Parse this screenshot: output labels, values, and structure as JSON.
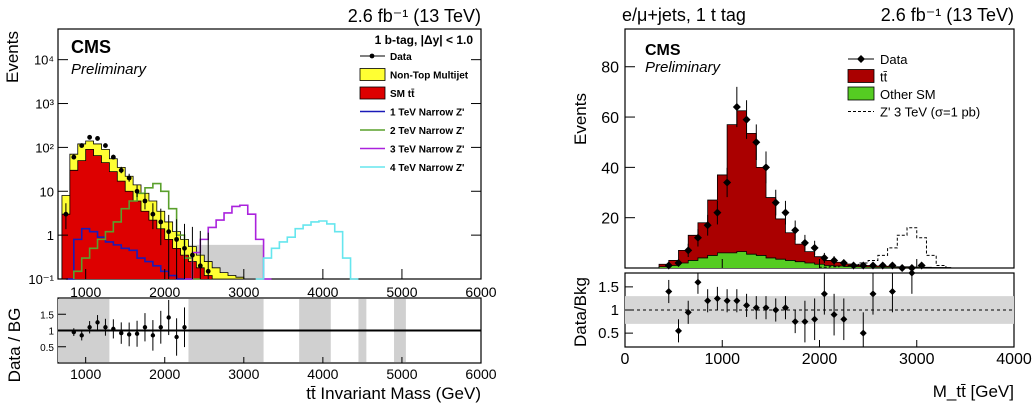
{
  "chart_data": [
    {
      "type": "histogram",
      "lumi_label": "2.6 fb⁻¹ (13 TeV)",
      "cms_label": "CMS",
      "prelim_label": "Preliminary",
      "selection_label": "1 b-tag, |Δy| < 1.0",
      "top": {
        "ylabel": "Events",
        "yscale": "log",
        "ylim": [
          0.1,
          50000
        ],
        "yticks": [
          {
            "v": 0.1,
            "label": "10⁻¹"
          },
          {
            "v": 1,
            "label": "1"
          },
          {
            "v": 10,
            "label": "10"
          },
          {
            "v": 100,
            "label": "10²"
          },
          {
            "v": 1000,
            "label": "10³"
          },
          {
            "v": 10000,
            "label": "10⁴"
          }
        ]
      },
      "ratio": {
        "ylabel": "Data / BG",
        "ylim": [
          0,
          2
        ],
        "yticks": [
          {
            "v": 0.5,
            "label": "0.5"
          },
          {
            "v": 1,
            "label": "1"
          },
          {
            "v": 1.5,
            "label": "1.5"
          }
        ]
      },
      "xlabel": "tt̄ Invariant Mass (GeV)",
      "xlim": [
        650,
        6000
      ],
      "xticks": [
        1000,
        2000,
        3000,
        4000,
        5000,
        6000
      ],
      "bin_edges": [
        700,
        800,
        900,
        1000,
        1100,
        1200,
        1300,
        1400,
        1500,
        1600,
        1700,
        1800,
        1900,
        2000,
        2100,
        2200,
        2300,
        2400,
        2500,
        2600,
        2700,
        2800,
        2900,
        3000,
        3100,
        3200
      ],
      "legend": [
        {
          "label": "Data",
          "style": "marker",
          "color": "#000000"
        },
        {
          "label": "Non-Top Multijet",
          "style": "fill",
          "color": "#ffff33"
        },
        {
          "label": "SM tt̄",
          "style": "fill",
          "color": "#dd0000"
        },
        {
          "label": "1 TeV Narrow Z'",
          "style": "line",
          "color": "#1a1ab8"
        },
        {
          "label": "2 TeV Narrow Z'",
          "style": "line",
          "color": "#5aa02c"
        },
        {
          "label": "3 TeV Narrow Z'",
          "style": "line",
          "color": "#aa22dd"
        },
        {
          "label": "4 TeV Narrow Z'",
          "style": "line",
          "color": "#66e6ee"
        }
      ],
      "series": {
        "sm_ttbar": [
          3,
          30,
          50,
          90,
          65,
          45,
          28,
          17,
          10,
          6,
          3.5,
          2.2,
          1.4,
          0.8,
          0.5,
          0.35,
          0.25,
          0.18,
          0.12,
          0.1,
          0,
          0,
          0,
          0,
          0
        ],
        "total_bg": [
          8,
          70,
          120,
          140,
          120,
          90,
          55,
          35,
          22,
          14,
          9,
          6,
          3.5,
          2,
          1.2,
          0.8,
          0.55,
          0.35,
          0.25,
          0.18,
          0.14,
          0.12,
          0.11,
          0,
          0
        ],
        "data": {
          "x": [
            750,
            850,
            950,
            1050,
            1150,
            1250,
            1350,
            1450,
            1550,
            1650,
            1750,
            1850,
            1950,
            2050,
            2150,
            2250,
            2350,
            2450,
            2550
          ],
          "y": [
            3,
            60,
            110,
            170,
            160,
            110,
            60,
            30,
            20,
            10,
            6,
            3,
            2,
            1.2,
            0.8,
            0.5,
            0.35,
            0.2,
            0.15
          ]
        },
        "zp1": {
          "x": [
            800,
            900,
            1000,
            1100,
            1200,
            1300,
            1400,
            1500,
            1600,
            1700,
            1800,
            1900,
            2000,
            2100,
            2200,
            2300
          ],
          "y": [
            0.1,
            0.8,
            1.4,
            1.2,
            0.9,
            0.7,
            0.6,
            0.5,
            0.45,
            0.3,
            0.25,
            0.2,
            0.15,
            0.12,
            0.1,
            0.1
          ]
        },
        "zp2": {
          "x": [
            900,
            1000,
            1100,
            1200,
            1300,
            1400,
            1500,
            1600,
            1700,
            1800,
            1900,
            2000,
            2100,
            2200,
            2300,
            2400
          ],
          "y": [
            0.15,
            0.3,
            0.5,
            0.8,
            1.2,
            2,
            4,
            6,
            9,
            12,
            15,
            10,
            4,
            1,
            0.3,
            0.1
          ]
        },
        "zp3": {
          "x": [
            2300,
            2400,
            2500,
            2600,
            2700,
            2800,
            2900,
            3000,
            3100,
            3200,
            3300
          ],
          "y": [
            0.1,
            0.4,
            0.8,
            1.5,
            2.2,
            3.2,
            4.5,
            4.8,
            3,
            0.8,
            0.1
          ]
        },
        "zp4": {
          "x": [
            3200,
            3300,
            3400,
            3500,
            3600,
            3700,
            3800,
            3900,
            4000,
            4100,
            4200,
            4300,
            4400
          ],
          "y": [
            0.1,
            0.3,
            0.5,
            0.7,
            0.9,
            1.4,
            1.7,
            2,
            2.1,
            1.8,
            1.2,
            0.3,
            0.1
          ]
        }
      },
      "ratio_points": {
        "x": [
          850,
          950,
          1050,
          1150,
          1250,
          1350,
          1450,
          1550,
          1650,
          1750,
          1850,
          1950,
          2050,
          2150,
          2250
        ],
        "y": [
          0.95,
          0.85,
          1.1,
          1.25,
          1.1,
          1.05,
          0.92,
          0.88,
          0.9,
          1.1,
          0.85,
          1.1,
          1.4,
          0.8,
          1.1
        ]
      }
    },
    {
      "type": "histogram",
      "channel_label": "e/μ+jets, 1 t tag",
      "lumi_label": "2.6 fb⁻¹ (13 TeV)",
      "cms_label": "CMS",
      "prelim_label": "Preliminary",
      "top": {
        "ylabel": "Events",
        "ylim": [
          0,
          95
        ],
        "yticks": [
          20,
          40,
          60,
          80
        ]
      },
      "ratio": {
        "ylabel": "Data/Bkg",
        "ylim": [
          0.2,
          1.8
        ],
        "yticks": [
          0.5,
          1,
          1.5
        ]
      },
      "xlabel": "M_tt̄ [GeV]",
      "xlim": [
        0,
        4000
      ],
      "xticks": [
        0,
        1000,
        2000,
        3000,
        4000
      ],
      "legend": [
        {
          "label": "Data",
          "style": "marker",
          "color": "#000000"
        },
        {
          "label": "tt̄",
          "style": "fill",
          "color": "#aa0000"
        },
        {
          "label": "Other SM",
          "style": "fill",
          "color": "#55cc22"
        },
        {
          "label": "Z' 3 TeV (σ=1 pb)",
          "style": "dashed",
          "color": "#000000"
        }
      ],
      "bin_edges": [
        350,
        450,
        550,
        650,
        750,
        850,
        950,
        1050,
        1150,
        1250,
        1350,
        1450,
        1550,
        1650,
        1750,
        1850,
        1950,
        2050,
        2150,
        2250,
        2350,
        2450,
        2550,
        2650,
        2750,
        2850,
        2950,
        3050,
        3150,
        3250,
        3350,
        3450,
        3550,
        3650,
        3750,
        3850,
        3950
      ],
      "series": {
        "ttbar": [
          1,
          2,
          5,
          10,
          14,
          22,
          31,
          51,
          56,
          48,
          35,
          24,
          16,
          11,
          7,
          4.5,
          3,
          2,
          1.5,
          1,
          0.8,
          0.6,
          0.5,
          0.4,
          0.3,
          0.3,
          0.2,
          0.2,
          0.1,
          0.1,
          0,
          0,
          0,
          0,
          0,
          0
        ],
        "other_sm": [
          0.5,
          1,
          2,
          3,
          4,
          5,
          6,
          6,
          6.5,
          5.5,
          5,
          4,
          3.5,
          3,
          2.5,
          2,
          1.5,
          1,
          0.8,
          0.6,
          0.5,
          0.4,
          0.3,
          0.3,
          0.2,
          0.2,
          0.2,
          0.1,
          0.1,
          0.1,
          0,
          0,
          0,
          0,
          0,
          0
        ],
        "data": {
          "x": [
            450,
            550,
            650,
            750,
            850,
            950,
            1050,
            1150,
            1250,
            1350,
            1450,
            1550,
            1650,
            1750,
            1850,
            1950,
            2050,
            2150,
            2250,
            2350,
            2450,
            2550,
            2650,
            2750,
            2850,
            2950,
            3050
          ],
          "y": [
            1,
            2,
            7,
            12,
            17,
            22,
            34,
            64,
            59,
            50,
            40,
            26,
            22,
            15,
            10,
            8,
            4,
            3,
            2,
            1,
            1,
            1,
            1,
            1,
            0,
            0,
            1
          ]
        },
        "zprime_3tev": {
          "x": [
            2050,
            2150,
            2250,
            2350,
            2450,
            2550,
            2650,
            2750,
            2850,
            2950,
            3050,
            3150,
            3250,
            3350
          ],
          "y": [
            0.3,
            0.5,
            0.8,
            1,
            2,
            3,
            5,
            8,
            13,
            16,
            12,
            5,
            1,
            0
          ]
        }
      },
      "ratio_points": {
        "x": [
          450,
          550,
          650,
          750,
          850,
          950,
          1050,
          1150,
          1250,
          1350,
          1450,
          1550,
          1650,
          1750,
          1850,
          1950,
          2050,
          2150,
          2250,
          2450,
          2550,
          2750,
          2950
        ],
        "y": [
          1.4,
          0.55,
          0.95,
          1.6,
          1.2,
          1.25,
          1.2,
          1.2,
          1.1,
          1.05,
          1.05,
          1,
          1.05,
          0.75,
          0.75,
          0.8,
          1.35,
          0.9,
          0.8,
          0.5,
          1.35,
          1.4,
          1.8
        ]
      }
    }
  ]
}
